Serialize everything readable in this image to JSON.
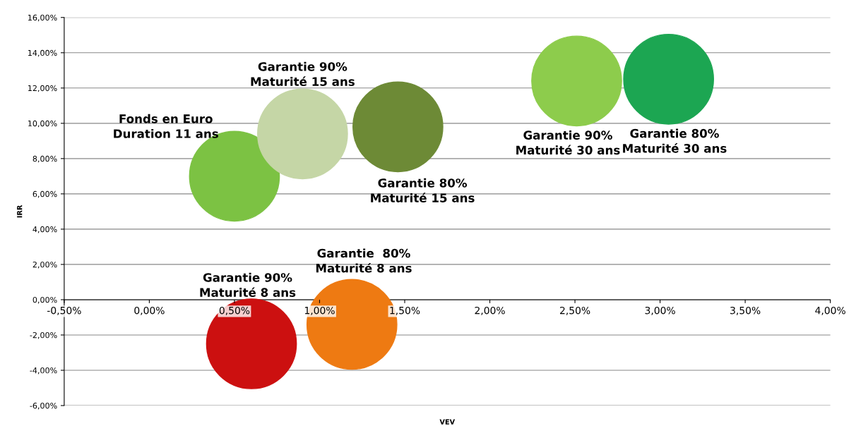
{
  "chart_data": {
    "type": "bubble",
    "xlabel": "VEV",
    "ylabel": "IRR",
    "xlim": [
      -0.5,
      4.0
    ],
    "ylim": [
      -6,
      16
    ],
    "xticks": [
      {
        "value": -0.5,
        "label": "-0,50%"
      },
      {
        "value": 0,
        "label": "0,00%"
      },
      {
        "value": 0.5,
        "label": "0,50%"
      },
      {
        "value": 1,
        "label": "1,00%"
      },
      {
        "value": 1.5,
        "label": "1,50%"
      },
      {
        "value": 2,
        "label": "2,00%"
      },
      {
        "value": 2.5,
        "label": "2,50%"
      },
      {
        "value": 3,
        "label": "3,00%"
      },
      {
        "value": 3.5,
        "label": "3,50%"
      },
      {
        "value": 4,
        "label": "4,00%"
      }
    ],
    "yticks": [
      {
        "value": -6,
        "label": "-6,00%"
      },
      {
        "value": -4,
        "label": "-4,00%"
      },
      {
        "value": -2,
        "label": "-2,00%"
      },
      {
        "value": 0,
        "label": "0,00%"
      },
      {
        "value": 2,
        "label": "2,00%"
      },
      {
        "value": 4,
        "label": "4,00%"
      },
      {
        "value": 6,
        "label": "6,00%"
      },
      {
        "value": 8,
        "label": "8,00%"
      },
      {
        "value": 10,
        "label": "10,00%"
      },
      {
        "value": 12,
        "label": "12,00%"
      },
      {
        "value": 14,
        "label": "14,00%"
      },
      {
        "value": 16,
        "label": "16,00%"
      }
    ],
    "grid": "y",
    "legend": false,
    "series": [
      {
        "name": "Fonds en Euro\nDuration 11 ans",
        "color": "#7cc243",
        "x": [
          0.5
        ],
        "values": [
          7.0
        ],
        "sizes": [
          1
        ]
      },
      {
        "name": "Garantie 90%\nMaturité 15 ans",
        "color": "#c5d6a6",
        "x": [
          0.9
        ],
        "values": [
          9.4
        ],
        "sizes": [
          1
        ]
      },
      {
        "name": "Garantie 80%\nMaturité 15 ans",
        "color": "#6d8a36",
        "x": [
          1.46
        ],
        "values": [
          9.8
        ],
        "sizes": [
          1
        ]
      },
      {
        "name": "Garantie 90%\nMaturité 30 ans",
        "color": "#8dcc4c",
        "x": [
          2.51
        ],
        "values": [
          12.4
        ],
        "sizes": [
          1
        ]
      },
      {
        "name": "Garantie 80%\nMaturité 30 ans",
        "color": "#1ca652",
        "x": [
          3.05
        ],
        "values": [
          12.5
        ],
        "sizes": [
          1
        ]
      },
      {
        "name": "Garantie 90%\nMaturité 8 ans",
        "color": "#cc1010",
        "x": [
          0.6
        ],
        "values": [
          -2.5
        ],
        "sizes": [
          1
        ]
      },
      {
        "name": "Garantie  80%\nMaturité 8 ans",
        "color": "#ee7a12",
        "x": [
          1.19
        ],
        "values": [
          -1.4
        ],
        "sizes": [
          1
        ]
      }
    ]
  }
}
